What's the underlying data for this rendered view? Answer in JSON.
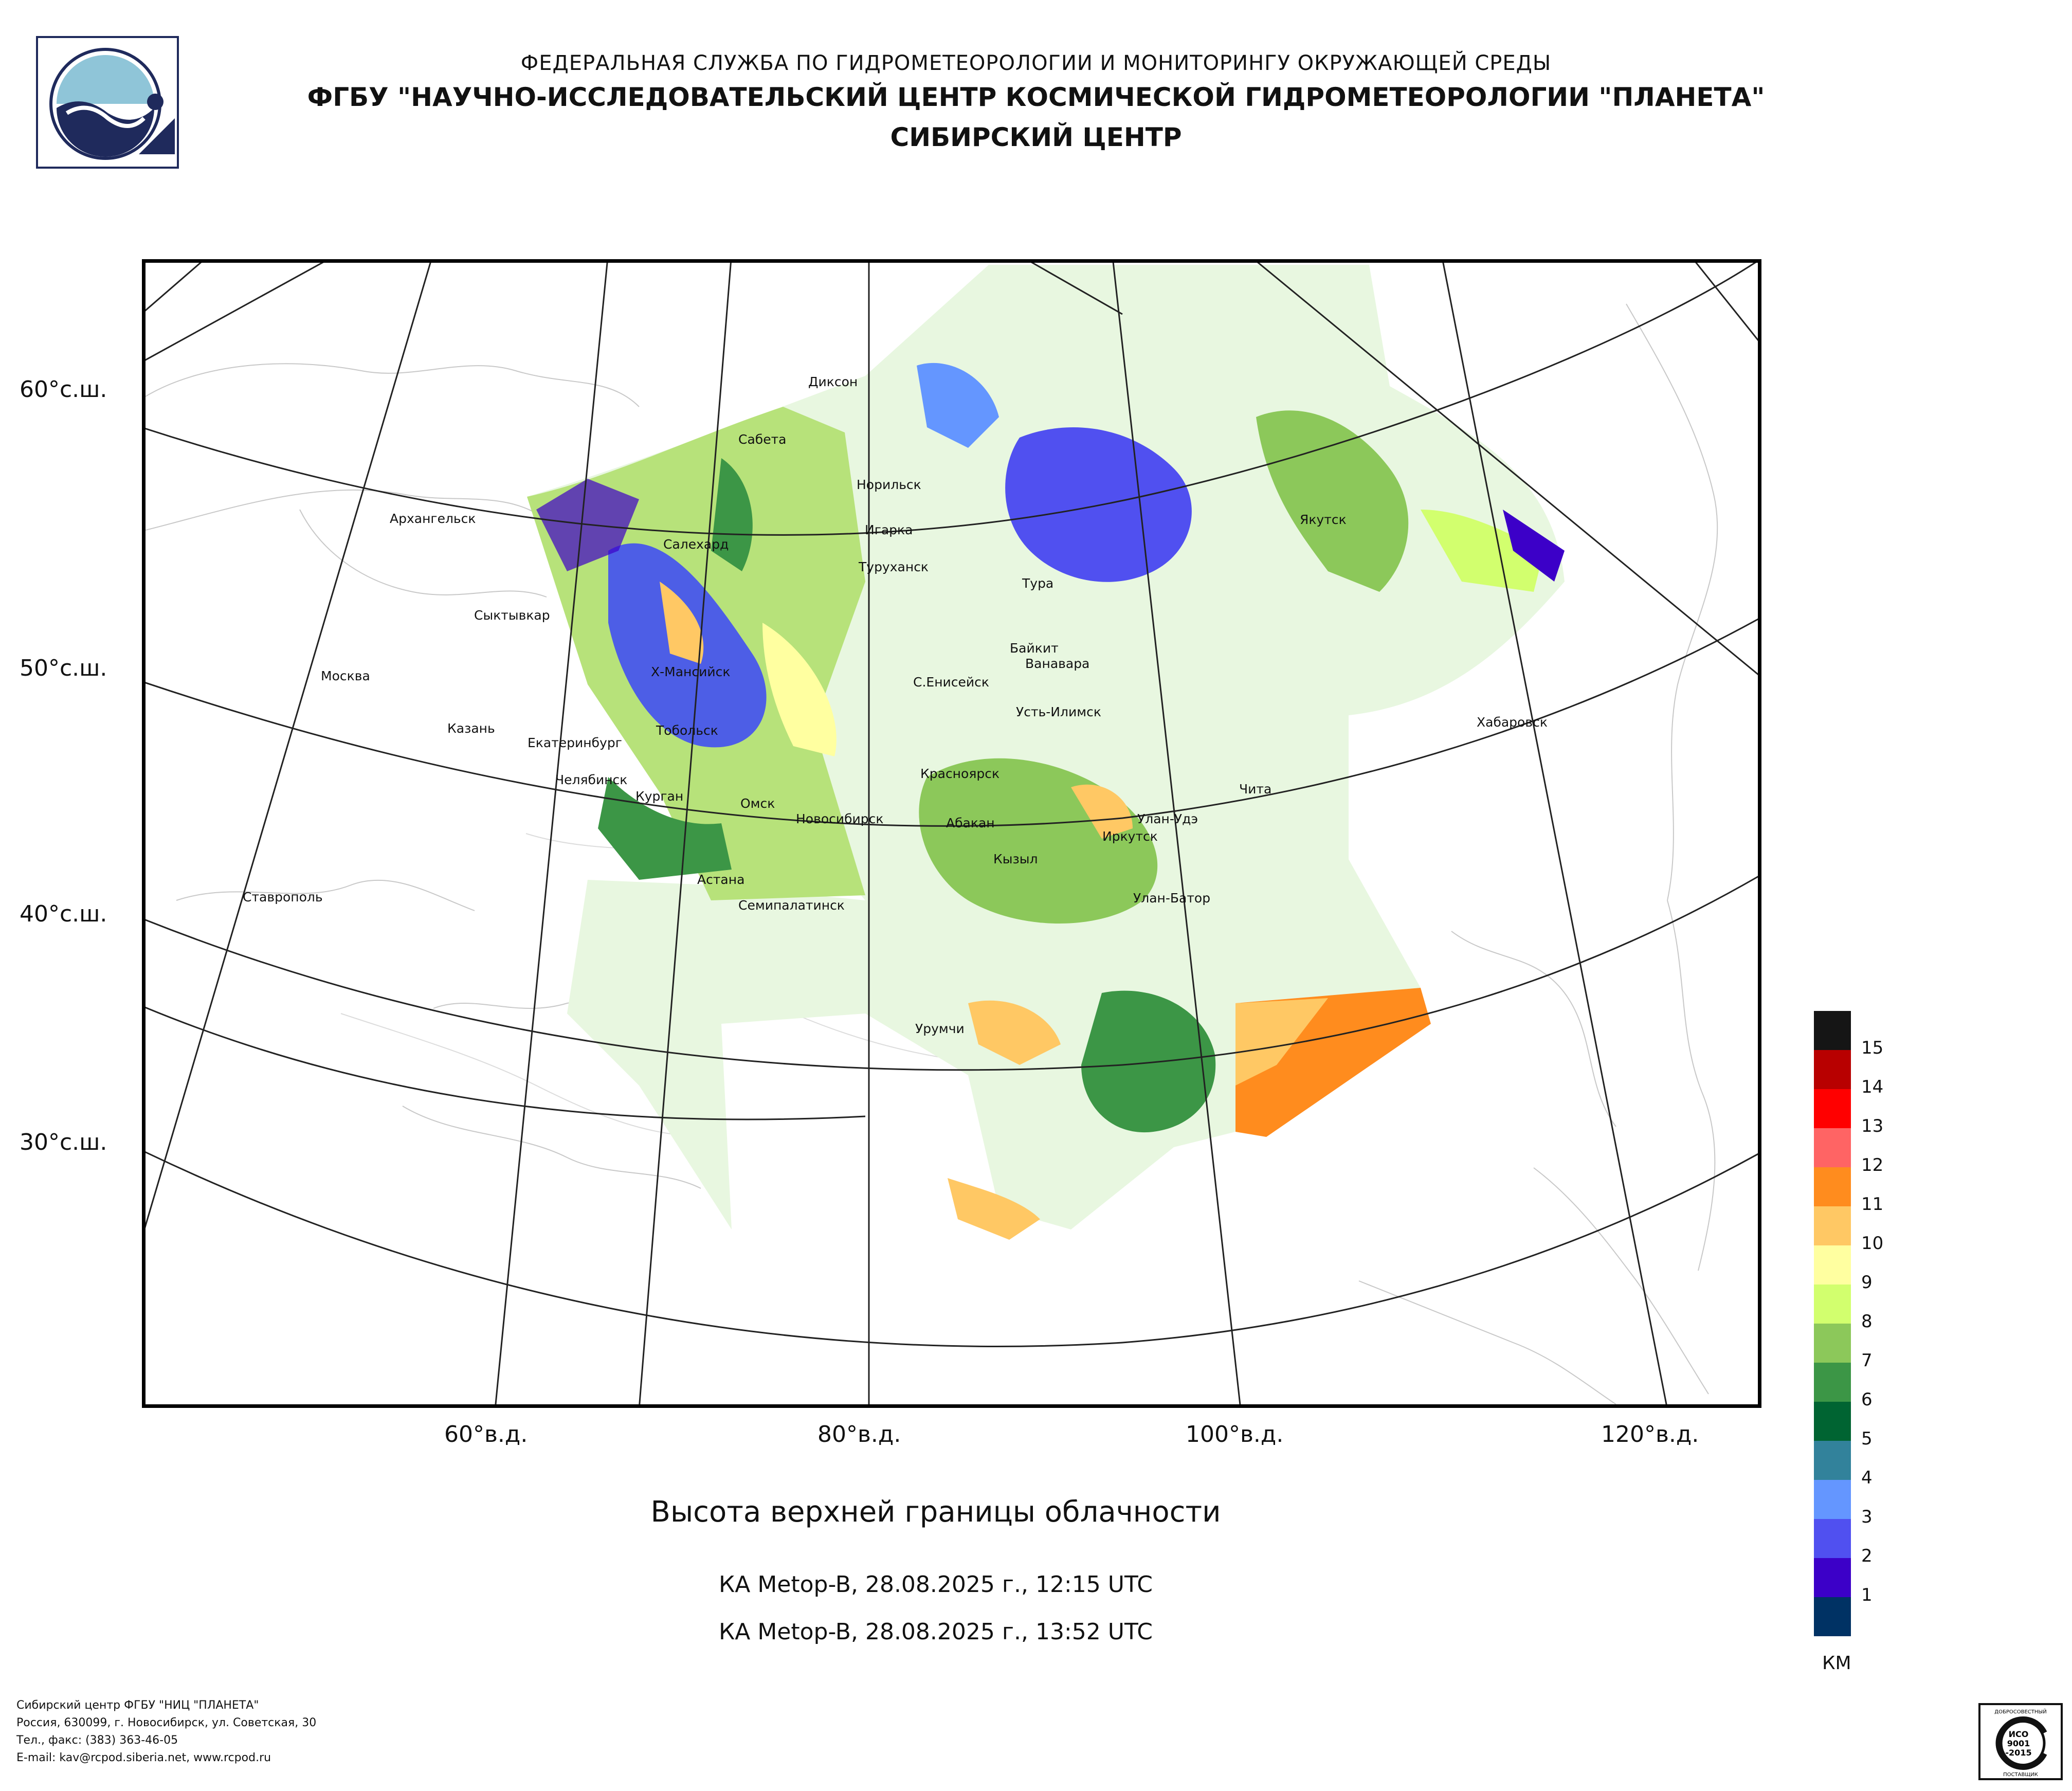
{
  "header": {
    "line1": "ФЕДЕРАЛЬНАЯ СЛУЖБА ПО ГИДРОМЕТЕОРОЛОГИИ И МОНИТОРИНГУ ОКРУЖАЮЩЕЙ СРЕДЫ",
    "line2": "ФГБУ \"НАУЧНО-ИССЛЕДОВАТЕЛЬСКИЙ ЦЕНТР КОСМИЧЕСКОЙ ГИДРОМЕТЕОРОЛОГИИ \"ПЛАНЕТА\"",
    "line3": "СИБИРСКИЙ ЦЕНТР"
  },
  "map": {
    "lat_labels": [
      "60°с.ш.",
      "50°с.ш.",
      "40°с.ш.",
      "30°с.ш."
    ],
    "lon_labels": [
      "60°в.д.",
      "80°в.д.",
      "100°в.д.",
      "120°в.д."
    ],
    "cities": [
      {
        "name": "Диксон"
      },
      {
        "name": "Сабета"
      },
      {
        "name": "Норильск"
      },
      {
        "name": "Архангельск"
      },
      {
        "name": "Игарка"
      },
      {
        "name": "Салехард"
      },
      {
        "name": "Туруханск"
      },
      {
        "name": "Тура"
      },
      {
        "name": "Якутск"
      },
      {
        "name": "Сыктывкар"
      },
      {
        "name": "Байкит"
      },
      {
        "name": "Ванавара"
      },
      {
        "name": "Х-Мансийск"
      },
      {
        "name": "С.Енисейск"
      },
      {
        "name": "Москва"
      },
      {
        "name": "Усть-Илимск"
      },
      {
        "name": "Хабаровск"
      },
      {
        "name": "Тобольск"
      },
      {
        "name": "Казань"
      },
      {
        "name": "Екатеринбург"
      },
      {
        "name": "Красноярск"
      },
      {
        "name": "Челябинск"
      },
      {
        "name": "Чита"
      },
      {
        "name": "Курган"
      },
      {
        "name": "Омск"
      },
      {
        "name": "Новосибирск"
      },
      {
        "name": "Абакан"
      },
      {
        "name": "Улан-Удэ"
      },
      {
        "name": "Иркутск"
      },
      {
        "name": "Кызыл"
      },
      {
        "name": "Астана"
      },
      {
        "name": "Ставрополь"
      },
      {
        "name": "Улан-Батор"
      },
      {
        "name": "Семипалатинск"
      },
      {
        "name": "Урумчи"
      }
    ]
  },
  "caption": "Высота верхней границы облачности",
  "satellite_passes": [
    "КА Metop-B, 28.08.2025 г., 12:15 UTC",
    "КА Metop-B, 28.08.2025 г., 13:52 UTC"
  ],
  "legend": {
    "unit": "КМ",
    "items": [
      {
        "label": "",
        "color": "#151515"
      },
      {
        "label": "15",
        "color": "#b80000"
      },
      {
        "label": "14",
        "color": "#ff0000"
      },
      {
        "label": "13",
        "color": "#ff6464"
      },
      {
        "label": "12",
        "color": "#ff8c1e"
      },
      {
        "label": "11",
        "color": "#ffc864"
      },
      {
        "label": "10",
        "color": "#ffffa0"
      },
      {
        "label": "9",
        "color": "#d2ff6e"
      },
      {
        "label": "8",
        "color": "#8cc85a"
      },
      {
        "label": "7",
        "color": "#3c9646"
      },
      {
        "label": "6",
        "color": "#006432"
      },
      {
        "label": "5",
        "color": "#32829b"
      },
      {
        "label": "4",
        "color": "#6496ff"
      },
      {
        "label": "3",
        "color": "#5050f0"
      },
      {
        "label": "2",
        "color": "#3c00c8"
      },
      {
        "label": "1",
        "color": "#003264"
      }
    ]
  },
  "footer": {
    "lines": [
      "Сибирский центр ФГБУ \"НИЦ \"ПЛАНЕТА\"",
      "Россия, 630099, г. Новосибирск, ул. Советская, 30",
      "Тел., факс: (383) 363-46-05",
      "E-mail: kav@rcpod.siberia.net, www.rcpod.ru"
    ]
  },
  "iso_badge": {
    "top_text": "ДОБРОСОВЕСТНЫЙ",
    "mid_text1": "ИСО",
    "mid_text2": "9001",
    "mid_text3": "-2015",
    "bottom_text": "ПОСТАВЩИК"
  }
}
